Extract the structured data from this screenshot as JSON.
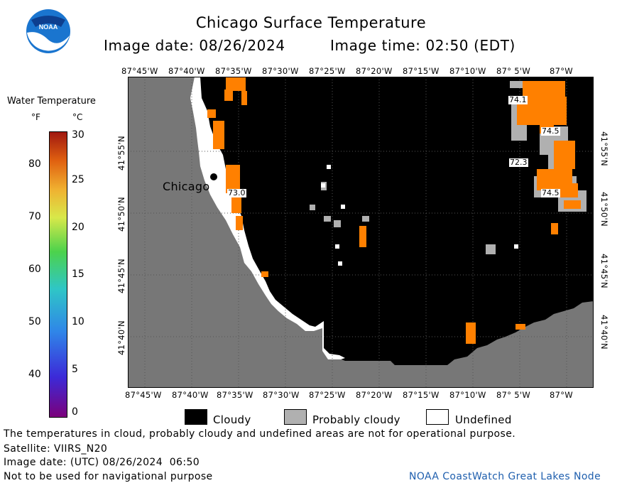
{
  "header": {
    "logo_text": "NOAA",
    "title": "Chicago Surface Temperature",
    "image_date": "Image date: 08/26/2024",
    "image_time": "Image time: 02:50 (EDT)"
  },
  "map": {
    "lon_labels": [
      "87°45'W",
      "87°40'W",
      "87°35'W",
      "87°30'W",
      "87°25'W",
      "87°20'W",
      "87°15'W",
      "87°10'W",
      "87° 5'W",
      "87°W"
    ],
    "lat_labels": [
      "41°55'N",
      "41°50'N",
      "41°45'N",
      "41°40'N"
    ],
    "city": "Chicago",
    "temp_labels": [
      "74.1",
      "74.5",
      "72.3",
      "74.5",
      "73.0"
    ],
    "colors": {
      "land": "#777777",
      "cloud": "#000000",
      "probably_cloudy": "#b0b0b0",
      "undefined": "#ffffff",
      "warm_water": "#ff8000",
      "grid": "#555555"
    }
  },
  "colorbar": {
    "title": "Water Temperature",
    "unit_f": "°F",
    "unit_c": "°C",
    "f_ticks": [
      "40",
      "50",
      "60",
      "70",
      "80"
    ],
    "c_ticks": [
      "0",
      "5",
      "10",
      "15",
      "20",
      "25",
      "30"
    ],
    "gradient": [
      "#7b007b",
      "#3c2ad8",
      "#2f86e8",
      "#2fc6c6",
      "#4cd24c",
      "#d8e84a",
      "#f0b030",
      "#e06010",
      "#a01810"
    ]
  },
  "key": {
    "cloudy": "Cloudy",
    "probably_cloudy": "Probably cloudy",
    "undefined": "Undefined"
  },
  "footer": {
    "disclaimer": "The temperatures in cloud, probably cloudy and undefined areas are not for operational purpose.",
    "satellite": "Satellite: VIIRS_N20",
    "utc_date": "Image date: (UTC) 08/26/2024  06:50",
    "nav_warning": "Not to be used for navigational purpose",
    "credit": "NOAA CoastWatch Great Lakes Node"
  }
}
